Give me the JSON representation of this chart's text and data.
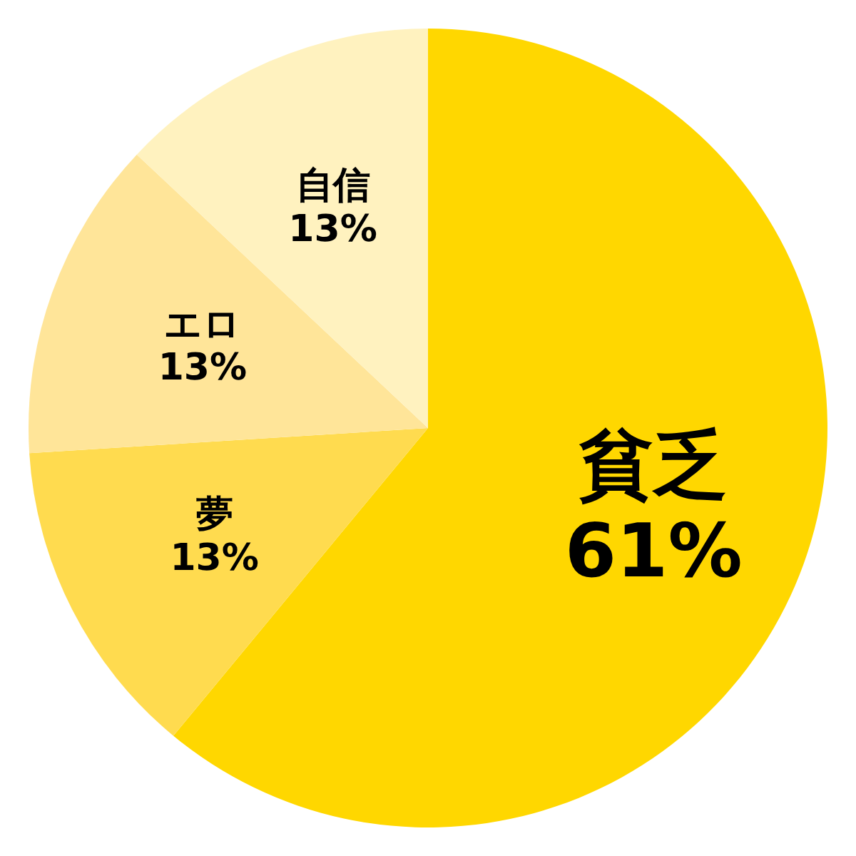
{
  "chart_data": {
    "type": "pie",
    "categories": [
      "貧乏",
      "夢",
      "エロ",
      "自信"
    ],
    "values": [
      61,
      13,
      13,
      13
    ],
    "colors": [
      "#ffd700",
      "#ffdb4f",
      "#ffe599",
      "#fff2bf"
    ],
    "value_labels": [
      "61%",
      "13%",
      "13%",
      "13%"
    ]
  }
}
